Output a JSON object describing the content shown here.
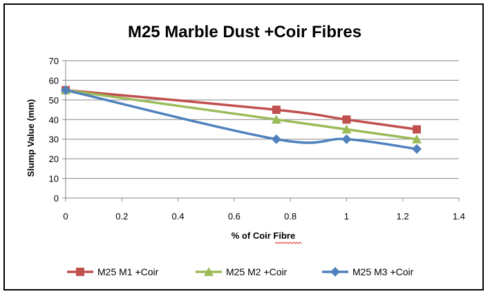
{
  "chart_data": {
    "type": "line",
    "title": "M25 Marble Dust +Coir Fibres",
    "xlabel": "% of Coir Fibre",
    "ylabel": "Slump Value (mm)",
    "xlim": [
      0,
      1.4
    ],
    "ylim": [
      0,
      70
    ],
    "xticks": [
      "0",
      "0.2",
      "0.4",
      "0.6",
      "0.8",
      "1",
      "1.2",
      "1.4"
    ],
    "yticks": [
      "0",
      "10",
      "20",
      "30",
      "40",
      "50",
      "60",
      "70"
    ],
    "grid": true,
    "legend_position": "bottom",
    "x": [
      0,
      0.75,
      1,
      1.25
    ],
    "series": [
      {
        "name": "M25 M1 +Coir",
        "values": [
          55,
          45,
          40,
          35
        ],
        "color": "#C0504D",
        "marker": "square"
      },
      {
        "name": "M25 M2 +Coir",
        "values": [
          55,
          40,
          35,
          30
        ],
        "color": "#9BBB59",
        "marker": "triangle"
      },
      {
        "name": "M25 M3 +Coir",
        "values": [
          55,
          30,
          30,
          25
        ],
        "color": "#4F81BD",
        "marker": "diamond"
      }
    ]
  }
}
